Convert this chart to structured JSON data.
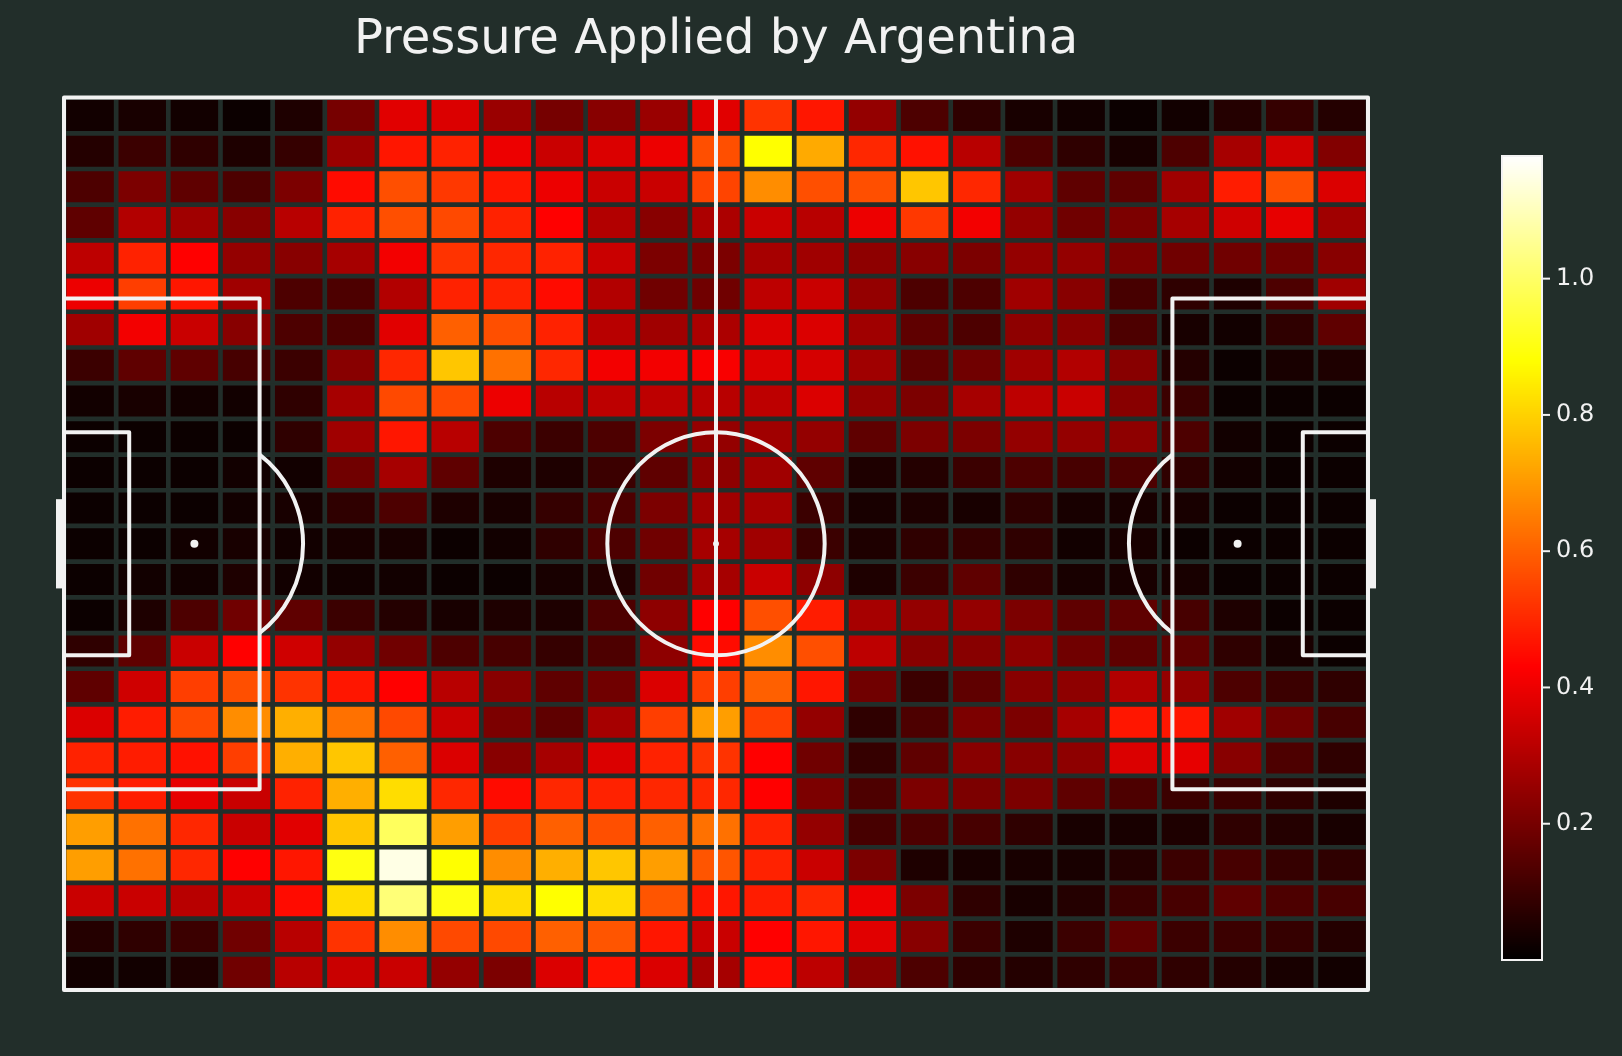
{
  "chart_data": {
    "type": "heatmap",
    "title": "Pressure Applied by Argentina",
    "categories": [
      null,
      null,
      null,
      null,
      null,
      null,
      null,
      null,
      null,
      null,
      null,
      null,
      null,
      null,
      null,
      null,
      null,
      null,
      null,
      null,
      null,
      null,
      null,
      null,
      null
    ],
    "y_categories": [
      null,
      null,
      null,
      null,
      null,
      null,
      null,
      null,
      null,
      null,
      null,
      null,
      null,
      null,
      null,
      null,
      null,
      null,
      null,
      null,
      null,
      null,
      null,
      null,
      null
    ],
    "clim": [
      0,
      1.18
    ],
    "cticks": [
      0.2,
      0.4,
      0.6,
      0.8,
      {
        "value": 1,
        "label": "1.0"
      }
    ],
    "cells": [
      [
        0.03,
        0.04,
        0.03,
        0.02,
        0.05,
        0.2,
        0.38,
        0.37,
        0.26,
        0.2,
        0.23,
        0.26,
        0.38,
        0.52,
        0.47,
        0.25,
        0.13,
        0.08,
        0.04,
        0.03,
        0.02,
        0.03,
        0.06,
        0.09,
        0.06
      ],
      [
        0.06,
        0.1,
        0.08,
        0.05,
        0.09,
        0.26,
        0.47,
        0.49,
        0.4,
        0.34,
        0.37,
        0.4,
        0.57,
        0.88,
        0.73,
        0.5,
        0.46,
        0.31,
        0.13,
        0.08,
        0.04,
        0.13,
        0.28,
        0.35,
        0.22
      ],
      [
        0.13,
        0.21,
        0.16,
        0.13,
        0.21,
        0.45,
        0.57,
        0.53,
        0.47,
        0.4,
        0.34,
        0.34,
        0.55,
        0.68,
        0.57,
        0.57,
        0.78,
        0.5,
        0.27,
        0.16,
        0.16,
        0.27,
        0.48,
        0.57,
        0.37
      ],
      [
        0.16,
        0.3,
        0.27,
        0.23,
        0.31,
        0.49,
        0.57,
        0.56,
        0.49,
        0.43,
        0.3,
        0.23,
        0.29,
        0.34,
        0.31,
        0.4,
        0.53,
        0.41,
        0.25,
        0.19,
        0.21,
        0.28,
        0.35,
        0.39,
        0.27
      ],
      [
        0.32,
        0.49,
        0.43,
        0.25,
        0.23,
        0.28,
        0.41,
        0.52,
        0.5,
        0.49,
        0.34,
        0.21,
        0.21,
        0.28,
        0.27,
        0.24,
        0.23,
        0.21,
        0.25,
        0.25,
        0.21,
        0.19,
        0.19,
        0.19,
        0.23
      ],
      [
        0.4,
        0.54,
        0.47,
        0.27,
        0.13,
        0.13,
        0.3,
        0.49,
        0.49,
        0.45,
        0.3,
        0.19,
        0.19,
        0.32,
        0.34,
        0.25,
        0.13,
        0.13,
        0.27,
        0.23,
        0.12,
        0.08,
        0.05,
        0.13,
        0.27
      ],
      [
        0.27,
        0.41,
        0.34,
        0.23,
        0.13,
        0.13,
        0.38,
        0.6,
        0.57,
        0.49,
        0.31,
        0.27,
        0.29,
        0.37,
        0.37,
        0.27,
        0.16,
        0.13,
        0.24,
        0.23,
        0.13,
        0.04,
        0.03,
        0.08,
        0.16
      ],
      [
        0.1,
        0.16,
        0.16,
        0.12,
        0.1,
        0.23,
        0.5,
        0.78,
        0.63,
        0.5,
        0.41,
        0.41,
        0.42,
        0.37,
        0.36,
        0.27,
        0.16,
        0.19,
        0.27,
        0.3,
        0.23,
        0.06,
        0.02,
        0.04,
        0.05
      ],
      [
        0.03,
        0.04,
        0.03,
        0.03,
        0.08,
        0.28,
        0.56,
        0.56,
        0.4,
        0.31,
        0.32,
        0.32,
        0.31,
        0.32,
        0.37,
        0.25,
        0.21,
        0.28,
        0.32,
        0.34,
        0.23,
        0.1,
        0.02,
        0.02,
        0.02
      ],
      [
        0.02,
        0.02,
        0.02,
        0.02,
        0.08,
        0.27,
        0.47,
        0.31,
        0.13,
        0.1,
        0.13,
        0.21,
        0.25,
        0.27,
        0.25,
        0.16,
        0.21,
        0.21,
        0.25,
        0.25,
        0.24,
        0.13,
        0.03,
        0.02,
        0.02
      ],
      [
        0.02,
        0.02,
        0.02,
        0.03,
        0.03,
        0.19,
        0.28,
        0.16,
        0.05,
        0.05,
        0.1,
        0.16,
        0.24,
        0.27,
        0.16,
        0.05,
        0.06,
        0.1,
        0.13,
        0.12,
        0.13,
        0.08,
        0.03,
        0.02,
        0.02
      ],
      [
        0.02,
        0.02,
        0.02,
        0.03,
        0.04,
        0.08,
        0.13,
        0.05,
        0.04,
        0.09,
        0.13,
        0.21,
        0.27,
        0.28,
        0.1,
        0.04,
        0.05,
        0.04,
        0.08,
        0.04,
        0.04,
        0.04,
        0.02,
        0.02,
        0.02
      ],
      [
        0.02,
        0.02,
        0.03,
        0.04,
        0.03,
        0.04,
        0.04,
        0.02,
        0.03,
        0.08,
        0.13,
        0.19,
        0.28,
        0.27,
        0.1,
        0.05,
        0.08,
        0.09,
        0.08,
        0.03,
        0.04,
        0.02,
        0.02,
        0.02,
        0.02
      ],
      [
        0.02,
        0.03,
        0.03,
        0.05,
        0.03,
        0.03,
        0.03,
        0.02,
        0.02,
        0.04,
        0.06,
        0.19,
        0.28,
        0.34,
        0.24,
        0.05,
        0.1,
        0.16,
        0.08,
        0.04,
        0.04,
        0.04,
        0.02,
        0.02,
        0.02
      ],
      [
        0.02,
        0.05,
        0.13,
        0.19,
        0.16,
        0.1,
        0.06,
        0.04,
        0.05,
        0.05,
        0.13,
        0.24,
        0.43,
        0.57,
        0.48,
        0.28,
        0.25,
        0.25,
        0.21,
        0.16,
        0.16,
        0.12,
        0.05,
        0.02,
        0.02
      ],
      [
        0.08,
        0.16,
        0.34,
        0.43,
        0.35,
        0.25,
        0.19,
        0.13,
        0.12,
        0.09,
        0.13,
        0.24,
        0.45,
        0.68,
        0.57,
        0.32,
        0.23,
        0.23,
        0.24,
        0.19,
        0.16,
        0.16,
        0.08,
        0.04,
        0.02
      ],
      [
        0.16,
        0.35,
        0.54,
        0.57,
        0.52,
        0.47,
        0.43,
        0.31,
        0.23,
        0.16,
        0.19,
        0.37,
        0.54,
        0.6,
        0.47,
        0.19,
        0.1,
        0.16,
        0.23,
        0.24,
        0.3,
        0.25,
        0.13,
        0.1,
        0.08
      ],
      [
        0.37,
        0.48,
        0.56,
        0.68,
        0.74,
        0.63,
        0.56,
        0.34,
        0.21,
        0.16,
        0.28,
        0.54,
        0.71,
        0.54,
        0.25,
        0.08,
        0.13,
        0.21,
        0.21,
        0.28,
        0.47,
        0.47,
        0.27,
        0.19,
        0.12
      ],
      [
        0.49,
        0.48,
        0.46,
        0.54,
        0.74,
        0.78,
        0.6,
        0.37,
        0.23,
        0.28,
        0.37,
        0.49,
        0.52,
        0.43,
        0.19,
        0.09,
        0.16,
        0.23,
        0.23,
        0.24,
        0.37,
        0.39,
        0.23,
        0.13,
        0.08
      ],
      [
        0.52,
        0.48,
        0.39,
        0.34,
        0.49,
        0.74,
        0.82,
        0.5,
        0.45,
        0.5,
        0.49,
        0.5,
        0.5,
        0.43,
        0.21,
        0.13,
        0.21,
        0.21,
        0.21,
        0.16,
        0.13,
        0.1,
        0.1,
        0.08,
        0.05
      ],
      [
        0.71,
        0.63,
        0.5,
        0.34,
        0.38,
        0.78,
        0.99,
        0.71,
        0.54,
        0.6,
        0.57,
        0.6,
        0.63,
        0.49,
        0.25,
        0.12,
        0.13,
        0.12,
        0.08,
        0.04,
        0.04,
        0.05,
        0.08,
        0.06,
        0.04
      ],
      [
        0.71,
        0.63,
        0.5,
        0.43,
        0.47,
        0.9,
        1.15,
        0.88,
        0.68,
        0.74,
        0.78,
        0.71,
        0.58,
        0.49,
        0.34,
        0.21,
        0.05,
        0.04,
        0.04,
        0.04,
        0.06,
        0.1,
        0.12,
        0.09,
        0.08
      ],
      [
        0.34,
        0.34,
        0.31,
        0.34,
        0.45,
        0.82,
        1.02,
        0.9,
        0.82,
        0.88,
        0.82,
        0.58,
        0.47,
        0.48,
        0.5,
        0.4,
        0.21,
        0.08,
        0.04,
        0.06,
        0.1,
        0.12,
        0.16,
        0.13,
        0.12
      ],
      [
        0.06,
        0.08,
        0.1,
        0.19,
        0.31,
        0.52,
        0.68,
        0.56,
        0.56,
        0.6,
        0.58,
        0.47,
        0.34,
        0.43,
        0.47,
        0.38,
        0.23,
        0.1,
        0.05,
        0.1,
        0.16,
        0.1,
        0.1,
        0.09,
        0.06
      ],
      [
        0.03,
        0.03,
        0.05,
        0.19,
        0.31,
        0.34,
        0.34,
        0.25,
        0.21,
        0.37,
        0.46,
        0.37,
        0.28,
        0.45,
        0.32,
        0.23,
        0.13,
        0.08,
        0.06,
        0.08,
        0.1,
        0.08,
        0.06,
        0.04,
        0.03
      ]
    ]
  }
}
